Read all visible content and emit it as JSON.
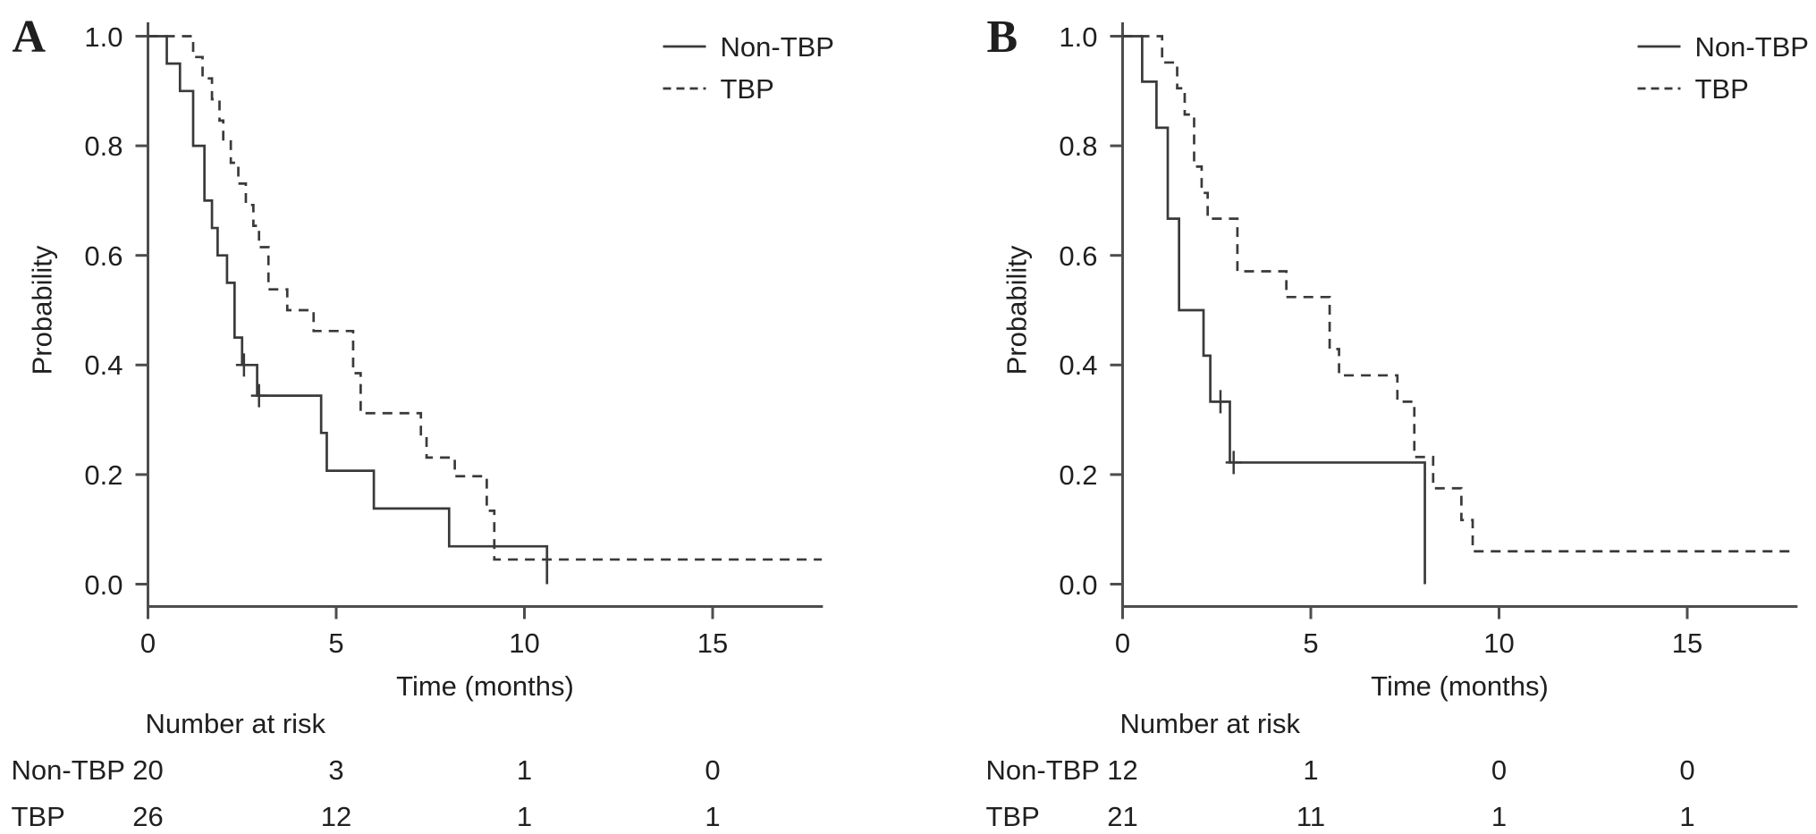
{
  "figure": {
    "background": "#ffffff"
  },
  "colors": {
    "curve": "#3a3a3a",
    "axis": "#4d4d4d",
    "text": "#1f1f1f"
  },
  "chart_data": [
    {
      "panel_label": "A",
      "type": "line",
      "subtype": "kaplan-meier-step",
      "title": "",
      "xlabel": "Time (months)",
      "ylabel": "Probability",
      "xlim": [
        0,
        18
      ],
      "ylim": [
        0,
        1
      ],
      "xticks": [
        0,
        5,
        10,
        15
      ],
      "yticks": [
        "0.0",
        "0.2",
        "0.4",
        "0.6",
        "0.8",
        "1.0"
      ],
      "grid": false,
      "legend_position": "top-right",
      "legend": [
        {
          "label": "Non-TBP",
          "line": "solid"
        },
        {
          "label": "TBP",
          "line": "dashed"
        }
      ],
      "series": [
        {
          "name": "Non-TBP",
          "line": "solid",
          "end": 10.6,
          "steps": [
            [
              0,
              1.0
            ],
            [
              0.5,
              0.95
            ],
            [
              0.85,
              0.9
            ],
            [
              1.2,
              0.8
            ],
            [
              1.5,
              0.7
            ],
            [
              1.7,
              0.65
            ],
            [
              1.85,
              0.6
            ],
            [
              2.1,
              0.55
            ],
            [
              2.3,
              0.45
            ],
            [
              2.5,
              0.4
            ],
            [
              2.9,
              0.344
            ],
            [
              4.6,
              0.276
            ],
            [
              4.75,
              0.207
            ],
            [
              6.0,
              0.138
            ],
            [
              8.0,
              0.069
            ],
            [
              10.6,
              0.0
            ]
          ],
          "censors": [
            [
              2.55,
              0.4
            ],
            [
              2.95,
              0.344
            ]
          ]
        },
        {
          "name": "TBP",
          "line": "dashed",
          "end": 17.9,
          "steps": [
            [
              0,
              1.0
            ],
            [
              1.2,
              0.962
            ],
            [
              1.45,
              0.923
            ],
            [
              1.7,
              0.885
            ],
            [
              1.9,
              0.846
            ],
            [
              2.0,
              0.808
            ],
            [
              2.2,
              0.769
            ],
            [
              2.4,
              0.731
            ],
            [
              2.6,
              0.692
            ],
            [
              2.8,
              0.654
            ],
            [
              2.95,
              0.615
            ],
            [
              3.2,
              0.538
            ],
            [
              3.7,
              0.5
            ],
            [
              4.4,
              0.462
            ],
            [
              5.45,
              0.385
            ],
            [
              5.65,
              0.312
            ],
            [
              7.25,
              0.269
            ],
            [
              7.4,
              0.231
            ],
            [
              8.15,
              0.197
            ],
            [
              9.0,
              0.134
            ],
            [
              9.2,
              0.045
            ]
          ],
          "censors": []
        }
      ],
      "risk_table": {
        "title": "Number at risk",
        "times": [
          0,
          5,
          10,
          15
        ],
        "rows": [
          {
            "label": "Non-TBP",
            "values": [
              "20",
              "3",
              "1",
              "0"
            ]
          },
          {
            "label": "TBP",
            "values": [
              "26",
              "12",
              "1",
              "1"
            ]
          }
        ]
      }
    },
    {
      "panel_label": "B",
      "type": "line",
      "subtype": "kaplan-meier-step",
      "title": "",
      "xlabel": "Time (months)",
      "ylabel": "Probability",
      "xlim": [
        0,
        18
      ],
      "ylim": [
        0,
        1
      ],
      "xticks": [
        0,
        5,
        10,
        15
      ],
      "yticks": [
        "0.0",
        "0.2",
        "0.4",
        "0.6",
        "0.8",
        "1.0"
      ],
      "grid": false,
      "legend_position": "top-right",
      "legend": [
        {
          "label": "Non-TBP",
          "line": "solid"
        },
        {
          "label": "TBP",
          "line": "dashed"
        }
      ],
      "series": [
        {
          "name": "Non-TBP",
          "line": "solid",
          "end": 8.03,
          "steps": [
            [
              0,
              1.0
            ],
            [
              0.52,
              0.917
            ],
            [
              0.9,
              0.833
            ],
            [
              1.2,
              0.667
            ],
            [
              1.5,
              0.5
            ],
            [
              2.15,
              0.417
            ],
            [
              2.33,
              0.333
            ],
            [
              2.85,
              0.222
            ],
            [
              8.03,
              0.0
            ]
          ],
          "censors": [
            [
              2.6,
              0.333
            ],
            [
              2.95,
              0.222
            ]
          ]
        },
        {
          "name": "TBP",
          "line": "dashed",
          "end": 17.9,
          "steps": [
            [
              0,
              1.0
            ],
            [
              1.05,
              0.952
            ],
            [
              1.45,
              0.905
            ],
            [
              1.65,
              0.857
            ],
            [
              1.9,
              0.762
            ],
            [
              2.1,
              0.714
            ],
            [
              2.26,
              0.667
            ],
            [
              3.05,
              0.571
            ],
            [
              4.35,
              0.524
            ],
            [
              5.5,
              0.429
            ],
            [
              5.75,
              0.381
            ],
            [
              7.3,
              0.333
            ],
            [
              7.75,
              0.232
            ],
            [
              8.25,
              0.175
            ],
            [
              9.0,
              0.117
            ],
            [
              9.3,
              0.06
            ]
          ],
          "censors": []
        }
      ],
      "risk_table": {
        "title": "Number at risk",
        "times": [
          0,
          5,
          10,
          15
        ],
        "rows": [
          {
            "label": "Non-TBP",
            "values": [
              "12",
              "1",
              "0",
              "0"
            ]
          },
          {
            "label": "TBP",
            "values": [
              "21",
              "11",
              "1",
              "1"
            ]
          }
        ]
      }
    }
  ]
}
